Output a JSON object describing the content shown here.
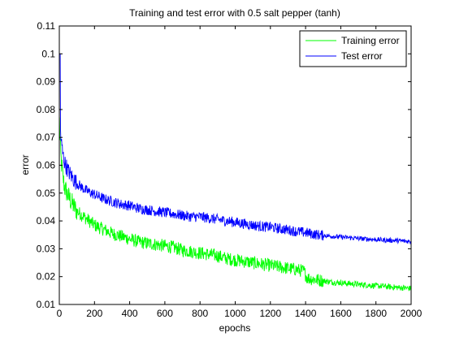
{
  "chart_data": {
    "type": "line",
    "title": "Training and test error with 0.5 salt pepper (tanh)",
    "xlabel": "epochs",
    "ylabel": "error",
    "xlim": [
      0,
      2000
    ],
    "ylim": [
      0.01,
      0.11
    ],
    "xticks": [
      0,
      200,
      400,
      600,
      800,
      1000,
      1200,
      1400,
      1600,
      1800,
      2000
    ],
    "yticks": [
      0.01,
      0.02,
      0.03,
      0.04,
      0.05,
      0.06,
      0.07,
      0.08,
      0.09,
      0.1,
      0.11
    ],
    "grid": false,
    "legend_position": "top-right",
    "series": [
      {
        "name": "Training error",
        "color": "#00ff00",
        "x": [
          1,
          5,
          10,
          20,
          30,
          50,
          75,
          100,
          150,
          200,
          250,
          300,
          350,
          400,
          450,
          500,
          550,
          600,
          650,
          700,
          750,
          800,
          850,
          900,
          950,
          1000,
          1050,
          1100,
          1150,
          1200,
          1250,
          1300,
          1350,
          1390,
          1410,
          1450,
          1500,
          1550,
          1600,
          1650,
          1700,
          1750,
          1800,
          1850,
          1900,
          1950,
          2000
        ],
        "y": [
          0.076,
          0.068,
          0.062,
          0.056,
          0.052,
          0.049,
          0.046,
          0.0435,
          0.041,
          0.0385,
          0.037,
          0.0355,
          0.0345,
          0.0335,
          0.0325,
          0.032,
          0.0315,
          0.031,
          0.0305,
          0.0295,
          0.029,
          0.0285,
          0.028,
          0.0275,
          0.0265,
          0.026,
          0.0255,
          0.025,
          0.0245,
          0.024,
          0.0235,
          0.023,
          0.0225,
          0.022,
          0.0195,
          0.019,
          0.0185,
          0.018,
          0.0178,
          0.0175,
          0.0172,
          0.017,
          0.0167,
          0.0165,
          0.0162,
          0.016,
          0.0157
        ]
      },
      {
        "name": "Test error",
        "color": "#0000ff",
        "x": [
          1,
          5,
          10,
          20,
          30,
          50,
          75,
          100,
          150,
          200,
          250,
          300,
          350,
          400,
          450,
          500,
          550,
          600,
          650,
          700,
          750,
          800,
          850,
          900,
          950,
          1000,
          1050,
          1100,
          1150,
          1200,
          1250,
          1300,
          1350,
          1400,
          1450,
          1500,
          1550,
          1600,
          1650,
          1700,
          1750,
          1800,
          1850,
          1900,
          1950,
          2000
        ],
        "y": [
          0.1,
          0.075,
          0.069,
          0.064,
          0.061,
          0.058,
          0.0555,
          0.0535,
          0.051,
          0.0495,
          0.048,
          0.047,
          0.046,
          0.0455,
          0.0445,
          0.044,
          0.0435,
          0.043,
          0.0425,
          0.042,
          0.0415,
          0.0415,
          0.041,
          0.0405,
          0.04,
          0.0395,
          0.039,
          0.0385,
          0.038,
          0.0378,
          0.0372,
          0.0368,
          0.0362,
          0.0358,
          0.0352,
          0.0348,
          0.0345,
          0.0342,
          0.034,
          0.0337,
          0.0335,
          0.0333,
          0.0331,
          0.033,
          0.0328,
          0.0326
        ]
      }
    ]
  }
}
